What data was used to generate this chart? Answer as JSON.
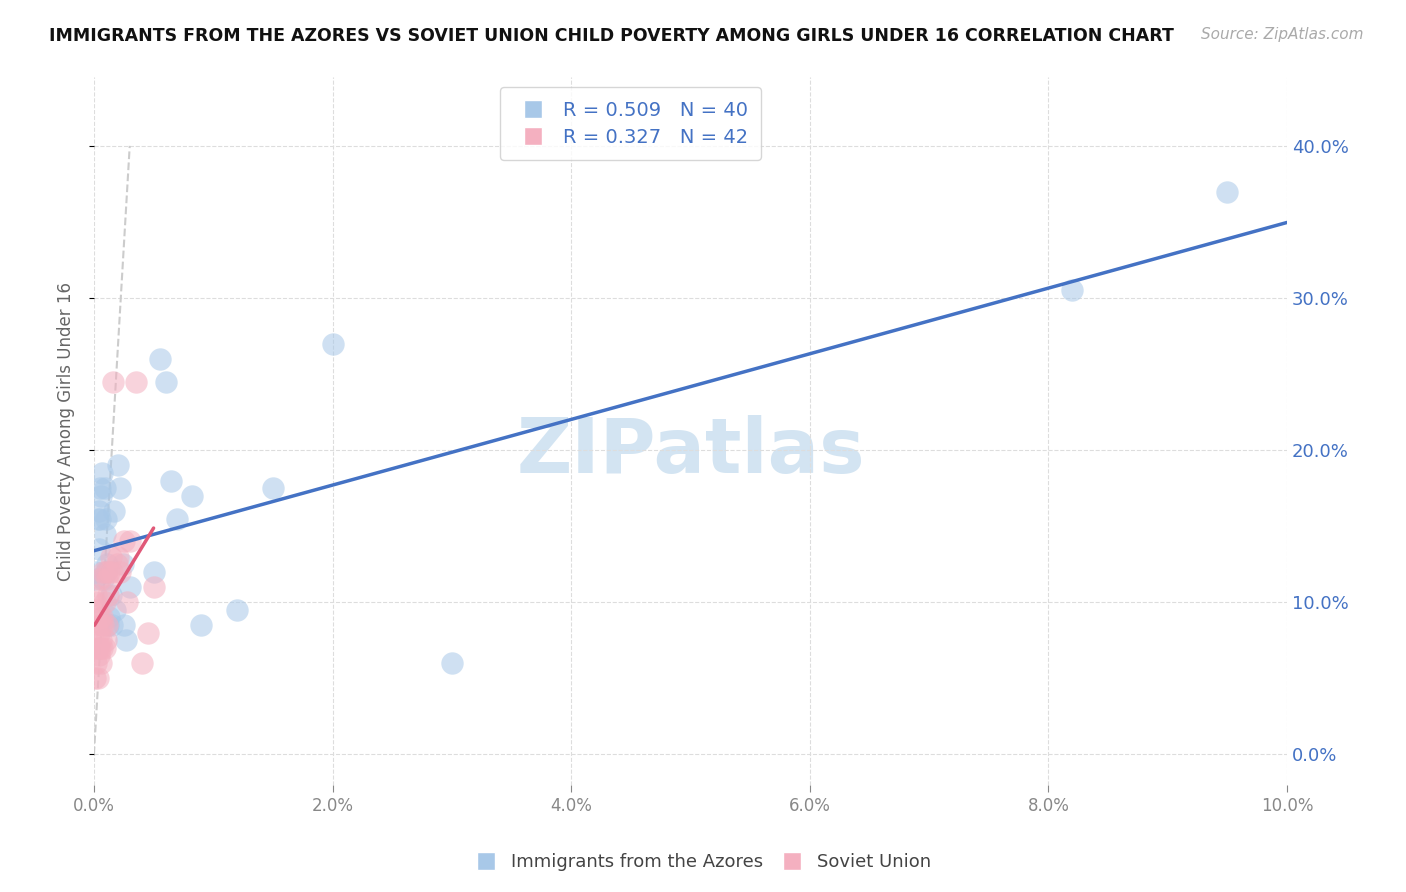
{
  "title": "IMMIGRANTS FROM THE AZORES VS SOVIET UNION CHILD POVERTY AMONG GIRLS UNDER 16 CORRELATION CHART",
  "source": "Source: ZipAtlas.com",
  "ylabel": "Child Poverty Among Girls Under 16",
  "xlim": [
    0.0,
    0.1
  ],
  "ylim": [
    -0.02,
    0.445
  ],
  "azores_R": "0.509",
  "azores_N": "40",
  "soviet_R": "0.327",
  "soviet_N": "42",
  "azores_dot_color": "#a8c8e8",
  "soviet_dot_color": "#f4b0c0",
  "azores_line_color": "#4472c4",
  "soviet_line_color": "#e05878",
  "right_tick_color": "#4472c4",
  "title_color": "#111111",
  "source_color": "#aaaaaa",
  "grid_color": "#dddddd",
  "yticks": [
    0.0,
    0.1,
    0.2,
    0.3,
    0.4
  ],
  "xtick_major": [
    0.0,
    0.02,
    0.04,
    0.06,
    0.08,
    0.1
  ],
  "azores_x": [
    0.0001,
    0.0002,
    0.0003,
    0.0004,
    0.0004,
    0.0005,
    0.0005,
    0.0006,
    0.0007,
    0.0008,
    0.0009,
    0.0009,
    0.001,
    0.001,
    0.0011,
    0.0012,
    0.0013,
    0.0014,
    0.0015,
    0.0017,
    0.0018,
    0.002,
    0.0022,
    0.0024,
    0.0025,
    0.0027,
    0.003,
    0.005,
    0.0055,
    0.006,
    0.0065,
    0.007,
    0.0082,
    0.009,
    0.012,
    0.015,
    0.02,
    0.03,
    0.082,
    0.095
  ],
  "azores_y": [
    0.115,
    0.12,
    0.155,
    0.135,
    0.16,
    0.155,
    0.175,
    0.17,
    0.185,
    0.115,
    0.145,
    0.175,
    0.155,
    0.12,
    0.125,
    0.085,
    0.09,
    0.105,
    0.085,
    0.16,
    0.095,
    0.19,
    0.175,
    0.125,
    0.085,
    0.075,
    0.11,
    0.12,
    0.26,
    0.245,
    0.18,
    0.155,
    0.17,
    0.085,
    0.095,
    0.175,
    0.27,
    0.06,
    0.305,
    0.37
  ],
  "soviet_x": [
    5e-05,
    0.0001,
    0.0001,
    0.0002,
    0.0002,
    0.0002,
    0.0003,
    0.0003,
    0.0003,
    0.0004,
    0.0004,
    0.0005,
    0.0005,
    0.0005,
    0.0006,
    0.0006,
    0.0006,
    0.0007,
    0.0007,
    0.0008,
    0.0008,
    0.0009,
    0.0009,
    0.001,
    0.001,
    0.0011,
    0.0011,
    0.0012,
    0.0013,
    0.0014,
    0.0015,
    0.0016,
    0.0019,
    0.002,
    0.0022,
    0.0025,
    0.0028,
    0.003,
    0.0035,
    0.004,
    0.0045,
    0.005
  ],
  "soviet_y": [
    0.05,
    0.07,
    0.1,
    0.06,
    0.085,
    0.105,
    0.05,
    0.07,
    0.095,
    0.065,
    0.08,
    0.07,
    0.09,
    0.115,
    0.06,
    0.075,
    0.085,
    0.07,
    0.09,
    0.085,
    0.12,
    0.07,
    0.1,
    0.075,
    0.12,
    0.085,
    0.115,
    0.105,
    0.12,
    0.13,
    0.12,
    0.245,
    0.125,
    0.13,
    0.12,
    0.14,
    0.1,
    0.14,
    0.245,
    0.06,
    0.08,
    0.11
  ]
}
